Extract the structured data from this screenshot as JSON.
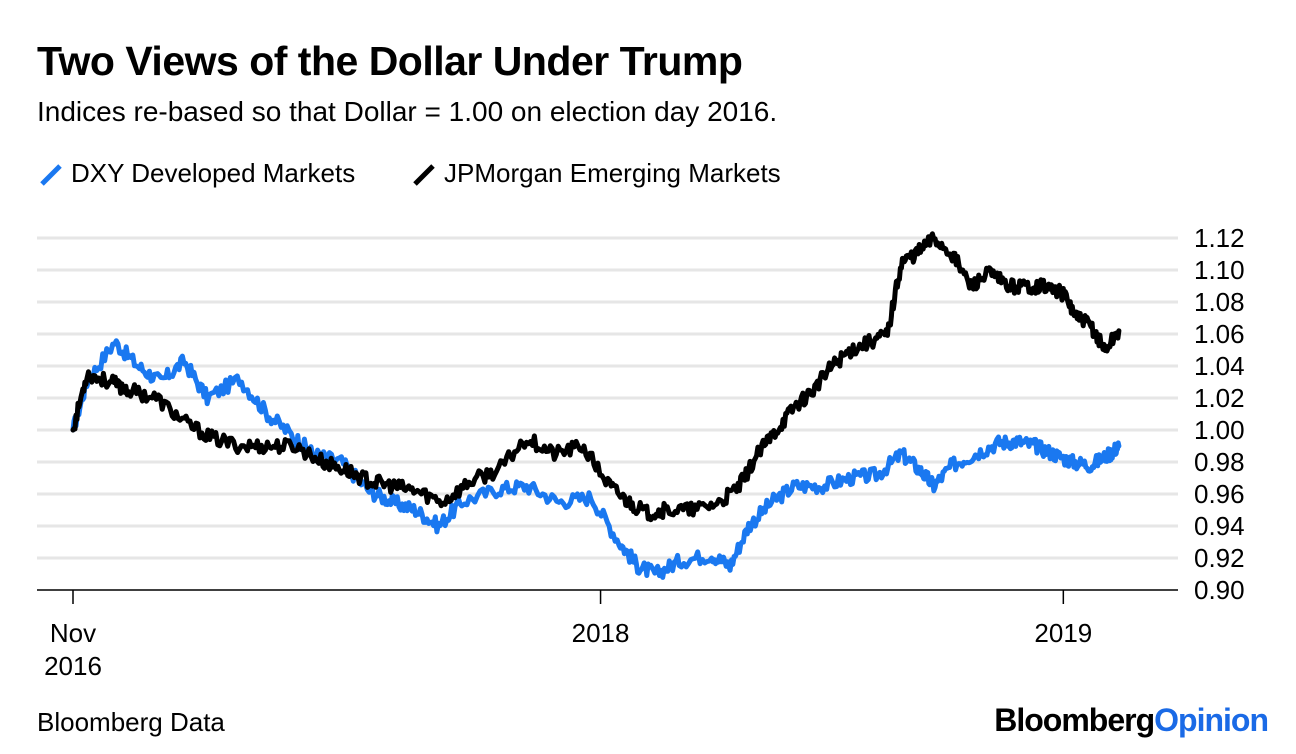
{
  "title": "Two Views of the Dollar Under Trump",
  "subtitle": "Indices re-based so that Dollar = 1.00 on election day 2016.",
  "legend": [
    {
      "label": "DXY Developed Markets",
      "color": "#1a78f0"
    },
    {
      "label": "JPMorgan Emerging Markets",
      "color": "#000000"
    }
  ],
  "source": "Bloomberg Data",
  "brand": {
    "part1": "Bloomberg",
    "part2": "Opinion",
    "color1": "#000000",
    "color2": "#1a6ae6"
  },
  "chart_data": {
    "type": "line",
    "title": "Two Views of the Dollar Under Trump",
    "xlabel": "",
    "ylabel": "",
    "y_axis_side": "right",
    "ylim": [
      0.9,
      1.12
    ],
    "y_ticks": [
      "1.12",
      "1.10",
      "1.08",
      "1.06",
      "1.04",
      "1.02",
      "1.00",
      "0.98",
      "0.96",
      "0.94",
      "0.92",
      "0.90"
    ],
    "x_range": [
      2016.86,
      2019.17
    ],
    "x_ticks": [
      {
        "x": 2016.86,
        "line1": "Nov",
        "line2": "2016"
      },
      {
        "x": 2018.0,
        "line1": "2018",
        "line2": ""
      },
      {
        "x": 2019.0,
        "line1": "2019",
        "line2": ""
      }
    ],
    "grid": true,
    "series": [
      {
        "name": "DXY Developed Markets",
        "color": "#1a78f0",
        "x": [
          2016.86,
          2016.89,
          2016.95,
          2017.0,
          2017.05,
          2017.1,
          2017.15,
          2017.22,
          2017.28,
          2017.34,
          2017.38,
          2017.44,
          2017.5,
          2017.55,
          2017.6,
          2017.65,
          2017.7,
          2017.78,
          2017.84,
          2017.91,
          2017.98,
          2018.04,
          2018.08,
          2018.12,
          2018.17,
          2018.24,
          2018.28,
          2018.32,
          2018.37,
          2018.42,
          2018.48,
          2018.54,
          2018.6,
          2018.65,
          2018.69,
          2018.72,
          2018.76,
          2018.81,
          2018.86,
          2018.9,
          2018.94,
          2018.98,
          2019.02,
          2019.06,
          2019.1,
          2019.12
        ],
        "values": [
          1.0,
          1.03,
          1.055,
          1.04,
          1.03,
          1.043,
          1.02,
          1.032,
          1.01,
          0.995,
          0.985,
          0.98,
          0.962,
          0.955,
          0.95,
          0.94,
          0.955,
          0.963,
          0.965,
          0.955,
          0.958,
          0.93,
          0.915,
          0.91,
          0.918,
          0.922,
          0.915,
          0.94,
          0.955,
          0.965,
          0.965,
          0.97,
          0.972,
          0.985,
          0.975,
          0.965,
          0.978,
          0.985,
          0.992,
          0.993,
          0.99,
          0.985,
          0.98,
          0.978,
          0.985,
          0.99
        ]
      },
      {
        "name": "JPMorgan Emerging Markets",
        "color": "#000000",
        "x": [
          2016.86,
          2016.89,
          2016.94,
          2016.98,
          2017.04,
          2017.1,
          2017.16,
          2017.22,
          2017.28,
          2017.34,
          2017.4,
          2017.45,
          2017.5,
          2017.55,
          2017.6,
          2017.66,
          2017.72,
          2017.78,
          2017.84,
          2017.9,
          2017.96,
          2018.02,
          2018.06,
          2018.1,
          2018.14,
          2018.2,
          2018.26,
          2018.3,
          2018.34,
          2018.38,
          2018.42,
          2018.46,
          2018.5,
          2018.54,
          2018.58,
          2018.62,
          2018.65,
          2018.68,
          2018.72,
          2018.76,
          2018.8,
          2018.84,
          2018.88,
          2018.92,
          2018.96,
          2019.0,
          2019.03,
          2019.06,
          2019.09,
          2019.12
        ],
        "values": [
          1.0,
          1.035,
          1.03,
          1.025,
          1.02,
          1.005,
          0.995,
          0.99,
          0.99,
          0.99,
          0.98,
          0.975,
          0.968,
          0.965,
          0.962,
          0.955,
          0.968,
          0.975,
          0.995,
          0.985,
          0.99,
          0.965,
          0.955,
          0.948,
          0.95,
          0.95,
          0.955,
          0.965,
          0.985,
          1.0,
          1.015,
          1.025,
          1.04,
          1.05,
          1.055,
          1.06,
          1.105,
          1.11,
          1.12,
          1.11,
          1.09,
          1.098,
          1.09,
          1.09,
          1.09,
          1.085,
          1.07,
          1.065,
          1.05,
          1.062
        ]
      }
    ]
  }
}
